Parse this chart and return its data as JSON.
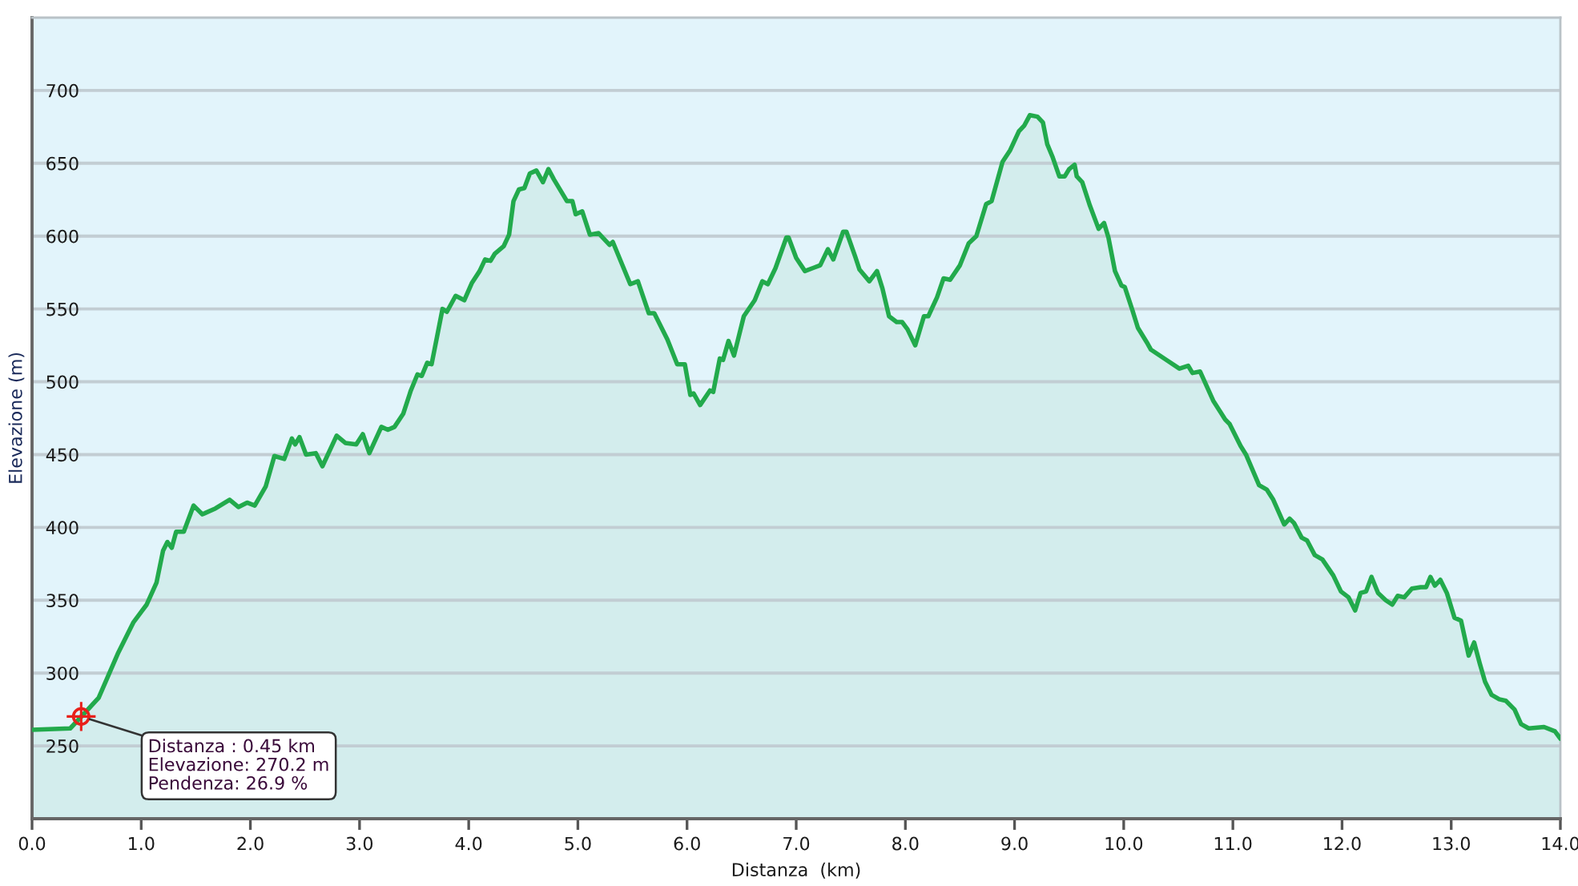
{
  "chart_data": {
    "type": "area",
    "xlabel": "Distanza  (km)",
    "ylabel": "Elevazione (m)",
    "x": [
      0.0,
      0.35,
      0.45,
      0.61,
      0.79,
      0.93,
      1.05,
      1.14,
      1.2,
      1.24,
      1.28,
      1.32,
      1.39,
      1.48,
      1.56,
      1.68,
      1.81,
      1.89,
      1.97,
      2.04,
      2.14,
      2.22,
      2.31,
      2.38,
      2.41,
      2.45,
      2.51,
      2.6,
      2.66,
      2.79,
      2.87,
      2.97,
      3.03,
      3.09,
      3.2,
      3.26,
      3.32,
      3.4,
      3.47,
      3.53,
      3.57,
      3.62,
      3.66,
      3.71,
      3.76,
      3.8,
      3.88,
      3.96,
      4.03,
      4.1,
      4.15,
      4.2,
      4.24,
      4.32,
      4.37,
      4.41,
      4.46,
      4.51,
      4.56,
      4.62,
      4.68,
      4.73,
      4.78,
      4.9,
      4.95,
      4.98,
      5.04,
      5.11,
      5.19,
      5.29,
      5.32,
      5.48,
      5.55,
      5.65,
      5.7,
      5.82,
      5.91,
      5.98,
      6.03,
      6.06,
      6.12,
      6.21,
      6.24,
      6.3,
      6.33,
      6.38,
      6.43,
      6.52,
      6.62,
      6.69,
      6.74,
      6.81,
      6.91,
      6.93,
      7.0,
      7.08,
      7.15,
      7.22,
      7.29,
      7.34,
      7.43,
      7.46,
      7.54,
      7.58,
      7.67,
      7.74,
      7.79,
      7.85,
      7.92,
      7.97,
      8.02,
      8.09,
      8.17,
      8.21,
      8.29,
      8.35,
      8.41,
      8.5,
      8.58,
      8.65,
      8.74,
      8.79,
      8.89,
      8.96,
      9.04,
      9.09,
      9.14,
      9.21,
      9.26,
      9.3,
      9.35,
      9.41,
      9.46,
      9.5,
      9.55,
      9.57,
      9.62,
      9.69,
      9.77,
      9.82,
      9.86,
      9.92,
      9.98,
      10.01,
      10.08,
      10.13,
      10.22,
      10.25,
      10.39,
      10.51,
      10.59,
      10.63,
      10.7,
      10.82,
      10.93,
      10.97,
      11.07,
      11.12,
      11.24,
      11.31,
      11.37,
      11.47,
      11.52,
      11.56,
      11.63,
      11.68,
      11.75,
      11.82,
      11.92,
      11.99,
      12.06,
      12.12,
      12.17,
      12.22,
      12.27,
      12.33,
      12.4,
      12.46,
      12.51,
      12.57,
      12.64,
      12.72,
      12.77,
      12.81,
      12.85,
      12.9,
      12.96,
      13.03,
      13.09,
      13.16,
      13.21,
      13.26,
      13.31,
      13.37,
      13.44,
      13.5,
      13.58,
      13.64,
      13.71,
      13.85,
      13.95,
      14.0
    ],
    "series": [
      {
        "color": "#22aa4c",
        "values": [
          261,
          262,
          270,
          283,
          314,
          335,
          347,
          362,
          384,
          390,
          386,
          397,
          397,
          415,
          409,
          413,
          419,
          414,
          417,
          415,
          428,
          449,
          447,
          461,
          457,
          462,
          450,
          451,
          442,
          463,
          458,
          457,
          464,
          451,
          469,
          467,
          469,
          478,
          494,
          505,
          504,
          513,
          512,
          531,
          550,
          548,
          559,
          556,
          568,
          576,
          584,
          583,
          588,
          593,
          601,
          624,
          632,
          633,
          643,
          645,
          637,
          646,
          639,
          624,
          624,
          615,
          617,
          601,
          602,
          594,
          596,
          567,
          569,
          547,
          547,
          529,
          512,
          512,
          491,
          492,
          484,
          494,
          493,
          516,
          515,
          528,
          518,
          545,
          556,
          569,
          567,
          578,
          599,
          599,
          585,
          576,
          578,
          580,
          591,
          584,
          603,
          603,
          586,
          577,
          569,
          576,
          564,
          545,
          541,
          541,
          536,
          525,
          545,
          545,
          558,
          571,
          570,
          580,
          595,
          600,
          622,
          624,
          651,
          659,
          672,
          676,
          683,
          682,
          678,
          663,
          654,
          641,
          641,
          646,
          649,
          641,
          637,
          621,
          605,
          609,
          599,
          576,
          566,
          565,
          549,
          537,
          526,
          522,
          515,
          509,
          511,
          506,
          507,
          487,
          474,
          471,
          456,
          450,
          429,
          426,
          419,
          402,
          406,
          403,
          393,
          391,
          381,
          378,
          367,
          356,
          352,
          343,
          355,
          356,
          366,
          355,
          350,
          347,
          353,
          352,
          358,
          359,
          359,
          366,
          360,
          364,
          355,
          338,
          336,
          312,
          321,
          307,
          294,
          285,
          282,
          281,
          275,
          265,
          262,
          263,
          260,
          255
        ]
      }
    ],
    "xlim": [
      0,
      14
    ],
    "xticks": [
      {
        "value": 0,
        "label": "0.0"
      },
      {
        "value": 1,
        "label": "1.0"
      },
      {
        "value": 2,
        "label": "2.0"
      },
      {
        "value": 3,
        "label": "3.0"
      },
      {
        "value": 4,
        "label": "4.0"
      },
      {
        "value": 5,
        "label": "5.0"
      },
      {
        "value": 6,
        "label": "6.0"
      },
      {
        "value": 7,
        "label": "7.0"
      },
      {
        "value": 8,
        "label": "8.0"
      },
      {
        "value": 9,
        "label": "9.0"
      },
      {
        "value": 10,
        "label": "10.0"
      },
      {
        "value": 11,
        "label": "11.0"
      },
      {
        "value": 12,
        "label": "12.0"
      },
      {
        "value": 13,
        "label": "13.0"
      },
      {
        "value": 14,
        "label": "14.0"
      }
    ],
    "ylim": [
      200,
      750
    ],
    "yticks": [
      250,
      300,
      350,
      400,
      450,
      500,
      550,
      600,
      650,
      700
    ],
    "grid": "y",
    "annotations": [
      {
        "text": "Distanza : 0.45 km\nElevazione: 270.2 m\nPendenza: 26.9 %",
        "x": 0.45,
        "y": 270.2
      }
    ]
  }
}
